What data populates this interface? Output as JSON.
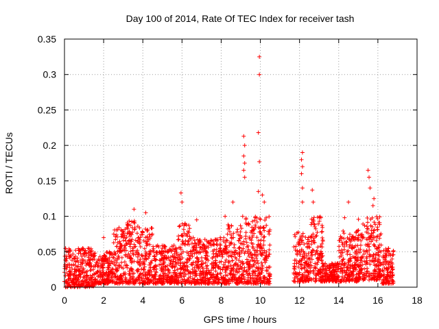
{
  "chart_data": {
    "type": "scatter",
    "title": "Day 100 of 2014, Rate Of TEC Index for receiver tash",
    "xlabel": "GPS time / hours",
    "ylabel": "ROTI / TECUs",
    "xlim": [
      0,
      18
    ],
    "ylim": [
      0,
      0.35
    ],
    "xticks": [
      0,
      2,
      4,
      6,
      8,
      10,
      12,
      14,
      16,
      18
    ],
    "yticks": [
      0,
      0.05,
      0.1,
      0.15,
      0.2,
      0.25,
      0.3,
      0.35
    ],
    "xtick_labels": [
      "0",
      "2",
      "4",
      "6",
      "8",
      "10",
      "12",
      "14",
      "16",
      "18"
    ],
    "ytick_labels": [
      "0",
      "0.05",
      "0.1",
      "0.15",
      "0.2",
      "0.25",
      "0.3",
      "0.35"
    ],
    "grid": true,
    "marker": "+",
    "color": "#ff0000",
    "data_gaps_hours": [
      [
        10.5,
        11.7
      ]
    ],
    "series": [
      {
        "name": "ROTI",
        "notable_points": [
          {
            "x": 3.55,
            "y": 0.11
          },
          {
            "x": 4.15,
            "y": 0.105
          },
          {
            "x": 5.95,
            "y": 0.133
          },
          {
            "x": 6.0,
            "y": 0.12
          },
          {
            "x": 8.6,
            "y": 0.12
          },
          {
            "x": 9.15,
            "y": 0.213
          },
          {
            "x": 9.2,
            "y": 0.2
          },
          {
            "x": 9.15,
            "y": 0.185
          },
          {
            "x": 9.2,
            "y": 0.175
          },
          {
            "x": 9.15,
            "y": 0.165
          },
          {
            "x": 9.2,
            "y": 0.155
          },
          {
            "x": 9.95,
            "y": 0.325
          },
          {
            "x": 9.95,
            "y": 0.3
          },
          {
            "x": 9.9,
            "y": 0.218
          },
          {
            "x": 9.95,
            "y": 0.177
          },
          {
            "x": 9.9,
            "y": 0.135
          },
          {
            "x": 10.1,
            "y": 0.13
          },
          {
            "x": 10.2,
            "y": 0.12
          },
          {
            "x": 12.15,
            "y": 0.19
          },
          {
            "x": 12.1,
            "y": 0.18
          },
          {
            "x": 12.15,
            "y": 0.17
          },
          {
            "x": 12.1,
            "y": 0.16
          },
          {
            "x": 12.15,
            "y": 0.14
          },
          {
            "x": 12.15,
            "y": 0.12
          },
          {
            "x": 12.65,
            "y": 0.137
          },
          {
            "x": 12.7,
            "y": 0.12
          },
          {
            "x": 14.5,
            "y": 0.12
          },
          {
            "x": 15.5,
            "y": 0.165
          },
          {
            "x": 15.55,
            "y": 0.155
          },
          {
            "x": 15.6,
            "y": 0.14
          },
          {
            "x": 15.8,
            "y": 0.125
          },
          {
            "x": 15.75,
            "y": 0.115
          },
          {
            "x": 2.0,
            "y": 0.07
          },
          {
            "x": 6.75,
            "y": 0.095
          },
          {
            "x": 8.2,
            "y": 0.1
          },
          {
            "x": 14.3,
            "y": 0.098
          }
        ],
        "bulk_segments": [
          {
            "x_start": 0.0,
            "x_end": 1.5,
            "y_min": 0.0,
            "y_max": 0.055
          },
          {
            "x_start": 1.5,
            "x_end": 2.5,
            "y_min": 0.005,
            "y_max": 0.05
          },
          {
            "x_start": 2.5,
            "x_end": 3.2,
            "y_min": 0.005,
            "y_max": 0.085
          },
          {
            "x_start": 3.2,
            "x_end": 3.8,
            "y_min": 0.005,
            "y_max": 0.095
          },
          {
            "x_start": 3.8,
            "x_end": 4.5,
            "y_min": 0.005,
            "y_max": 0.085
          },
          {
            "x_start": 4.5,
            "x_end": 5.8,
            "y_min": 0.005,
            "y_max": 0.06
          },
          {
            "x_start": 5.8,
            "x_end": 6.4,
            "y_min": 0.005,
            "y_max": 0.09
          },
          {
            "x_start": 6.4,
            "x_end": 7.5,
            "y_min": 0.005,
            "y_max": 0.07
          },
          {
            "x_start": 7.5,
            "x_end": 8.3,
            "y_min": 0.005,
            "y_max": 0.07
          },
          {
            "x_start": 8.3,
            "x_end": 9.0,
            "y_min": 0.005,
            "y_max": 0.09
          },
          {
            "x_start": 9.0,
            "x_end": 10.5,
            "y_min": 0.005,
            "y_max": 0.1
          },
          {
            "x_start": 11.7,
            "x_end": 12.5,
            "y_min": 0.008,
            "y_max": 0.08
          },
          {
            "x_start": 12.5,
            "x_end": 13.2,
            "y_min": 0.008,
            "y_max": 0.1
          },
          {
            "x_start": 13.2,
            "x_end": 14.0,
            "y_min": 0.008,
            "y_max": 0.035
          },
          {
            "x_start": 14.0,
            "x_end": 15.0,
            "y_min": 0.008,
            "y_max": 0.08
          },
          {
            "x_start": 15.0,
            "x_end": 16.2,
            "y_min": 0.01,
            "y_max": 0.1
          },
          {
            "x_start": 16.2,
            "x_end": 16.8,
            "y_min": 0.005,
            "y_max": 0.055
          }
        ]
      }
    ]
  }
}
